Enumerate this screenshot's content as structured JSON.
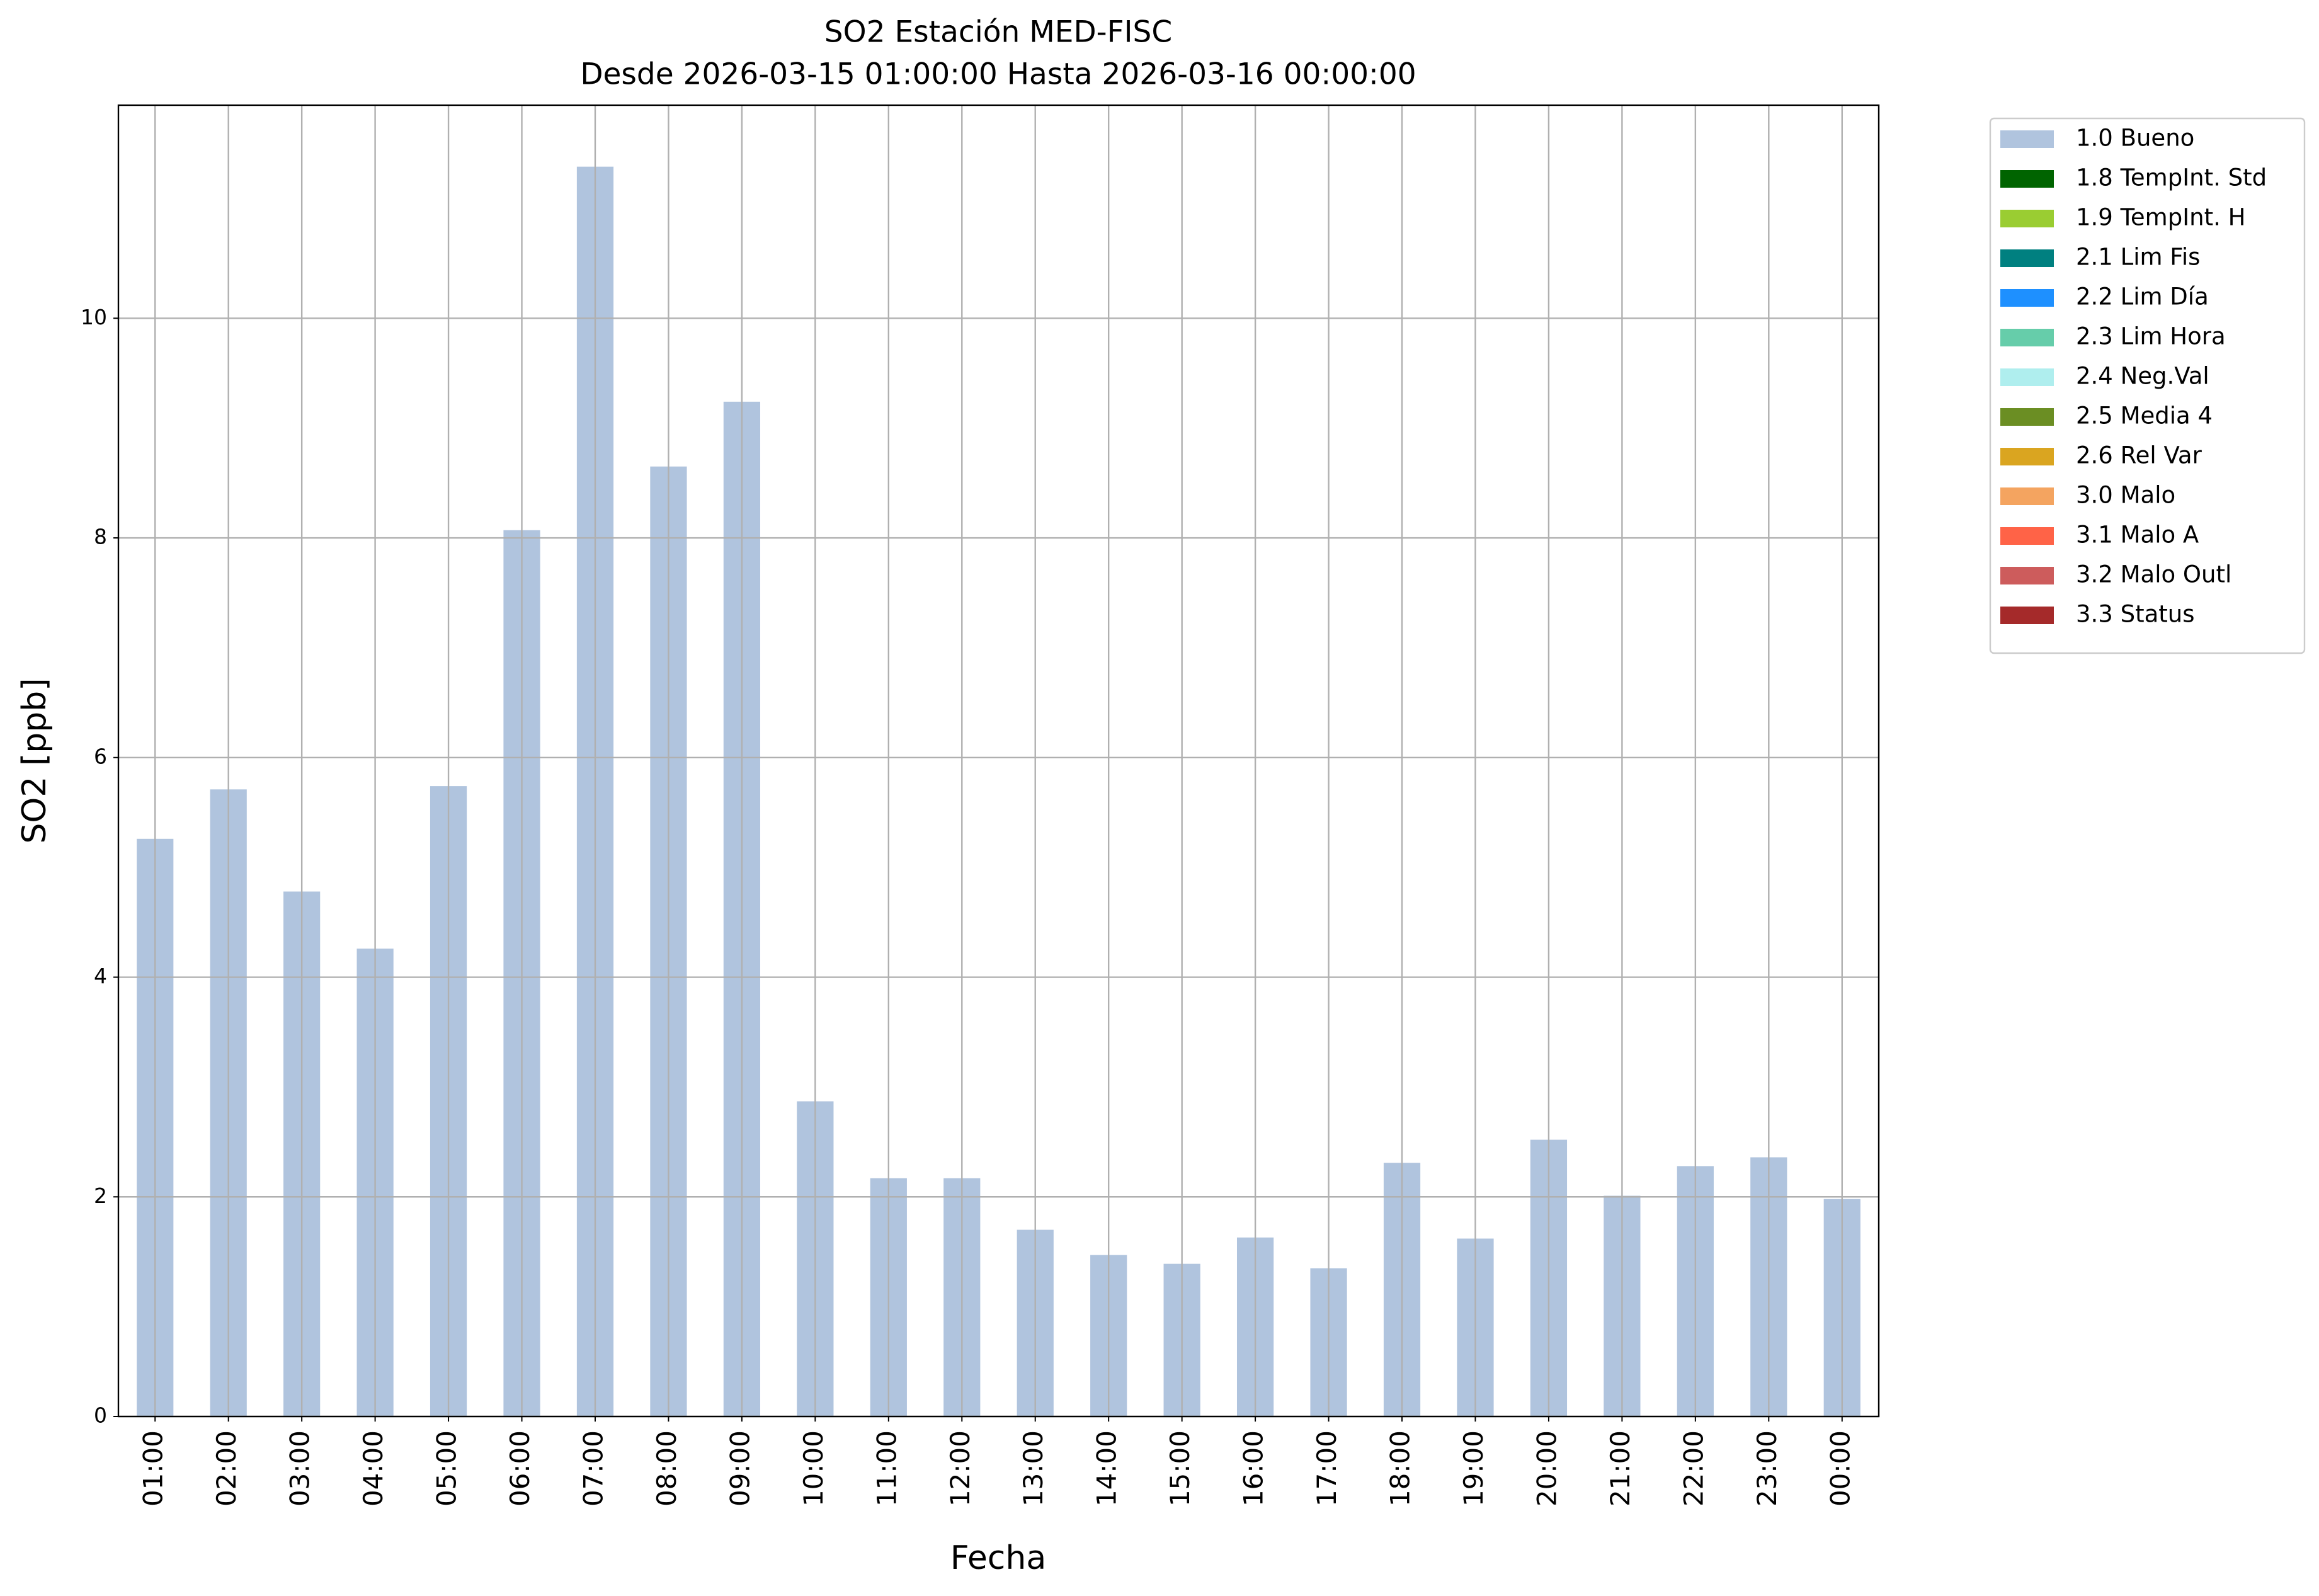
{
  "chart_data": {
    "type": "bar",
    "stacked": true,
    "title": "SO2 Estación MED-FISC",
    "subtitle": "Desde 2026-03-15 01:00:00 Hasta 2026-03-16 00:00:00",
    "x_label": "Fecha",
    "y_label": "SO2 [ppb]",
    "categories": [
      "01:00",
      "02:00",
      "03:00",
      "04:00",
      "05:00",
      "06:00",
      "07:00",
      "08:00",
      "09:00",
      "10:00",
      "11:00",
      "12:00",
      "13:00",
      "14:00",
      "15:00",
      "16:00",
      "17:00",
      "18:00",
      "19:00",
      "20:00",
      "21:00",
      "22:00",
      "23:00",
      "00:00"
    ],
    "series": [
      {
        "name": "1.0 Bueno",
        "color": "#b0c4de",
        "values": [
          5.26,
          5.71,
          4.78,
          4.26,
          5.74,
          8.07,
          11.38,
          8.65,
          9.24,
          2.87,
          2.17,
          2.17,
          1.7,
          1.47,
          1.39,
          1.63,
          1.35,
          2.31,
          1.62,
          2.52,
          2.01,
          2.28,
          2.36,
          1.98
        ]
      },
      {
        "name": "1.8 TempInt. Std",
        "color": "#006400",
        "values": [
          null,
          null,
          null,
          null,
          null,
          null,
          null,
          null,
          null,
          null,
          null,
          null,
          null,
          null,
          null,
          null,
          null,
          null,
          null,
          null,
          null,
          null,
          null,
          null
        ]
      },
      {
        "name": "1.9 TempInt. H",
        "color": "#9acd32",
        "values": [
          null,
          null,
          null,
          null,
          null,
          null,
          null,
          null,
          null,
          null,
          null,
          null,
          null,
          null,
          null,
          null,
          null,
          null,
          null,
          null,
          null,
          null,
          null,
          null
        ]
      },
      {
        "name": "2.1 Lim Fis",
        "color": "#008080",
        "values": [
          null,
          null,
          null,
          null,
          null,
          null,
          null,
          null,
          null,
          null,
          null,
          null,
          null,
          null,
          null,
          null,
          null,
          null,
          null,
          null,
          null,
          null,
          null,
          null
        ]
      },
      {
        "name": "2.2 Lim Día",
        "color": "#1e90ff",
        "values": [
          null,
          null,
          null,
          null,
          null,
          null,
          null,
          null,
          null,
          null,
          null,
          null,
          null,
          null,
          null,
          null,
          null,
          null,
          null,
          null,
          null,
          null,
          null,
          null
        ]
      },
      {
        "name": "2.3 Lim Hora",
        "color": "#66cdaa",
        "values": [
          null,
          null,
          null,
          null,
          null,
          null,
          null,
          null,
          null,
          null,
          null,
          null,
          null,
          null,
          null,
          null,
          null,
          null,
          null,
          null,
          null,
          null,
          null,
          null
        ]
      },
      {
        "name": "2.4 Neg.Val",
        "color": "#afeeee",
        "values": [
          null,
          null,
          null,
          null,
          null,
          null,
          null,
          null,
          null,
          null,
          null,
          null,
          null,
          null,
          null,
          null,
          null,
          null,
          null,
          null,
          null,
          null,
          null,
          null
        ]
      },
      {
        "name": "2.5 Media 4",
        "color": "#6b8e23",
        "values": [
          null,
          null,
          null,
          null,
          null,
          null,
          null,
          null,
          null,
          null,
          null,
          null,
          null,
          null,
          null,
          null,
          null,
          null,
          null,
          null,
          null,
          null,
          null,
          null
        ]
      },
      {
        "name": "2.6 Rel Var",
        "color": "#daa520",
        "values": [
          null,
          null,
          null,
          null,
          null,
          null,
          null,
          null,
          null,
          null,
          null,
          null,
          null,
          null,
          null,
          null,
          null,
          null,
          null,
          null,
          null,
          null,
          null,
          null
        ]
      },
      {
        "name": "3.0 Malo",
        "color": "#f4a460",
        "values": [
          null,
          null,
          null,
          null,
          null,
          null,
          null,
          null,
          null,
          null,
          null,
          null,
          null,
          null,
          null,
          null,
          null,
          null,
          null,
          null,
          null,
          null,
          null,
          null
        ]
      },
      {
        "name": "3.1 Malo A",
        "color": "#ff6347",
        "values": [
          null,
          null,
          null,
          null,
          null,
          null,
          null,
          null,
          null,
          null,
          null,
          null,
          null,
          null,
          null,
          null,
          null,
          null,
          null,
          null,
          null,
          null,
          null,
          null
        ]
      },
      {
        "name": "3.2 Malo Outl",
        "color": "#cd5c5c",
        "values": [
          null,
          null,
          null,
          null,
          null,
          null,
          null,
          null,
          null,
          null,
          null,
          null,
          null,
          null,
          null,
          null,
          null,
          null,
          null,
          null,
          null,
          null,
          null,
          null
        ]
      },
      {
        "name": "3.3 Status",
        "color": "#a52a2a",
        "values": [
          null,
          null,
          null,
          null,
          null,
          null,
          null,
          null,
          null,
          null,
          null,
          null,
          null,
          null,
          null,
          null,
          null,
          null,
          null,
          null,
          null,
          null,
          null,
          null
        ]
      }
    ],
    "ylim": [
      0,
      11.94
    ],
    "yticks": [
      0,
      2,
      4,
      6,
      8,
      10
    ],
    "grid": true,
    "legend": "outside-upper-right"
  }
}
